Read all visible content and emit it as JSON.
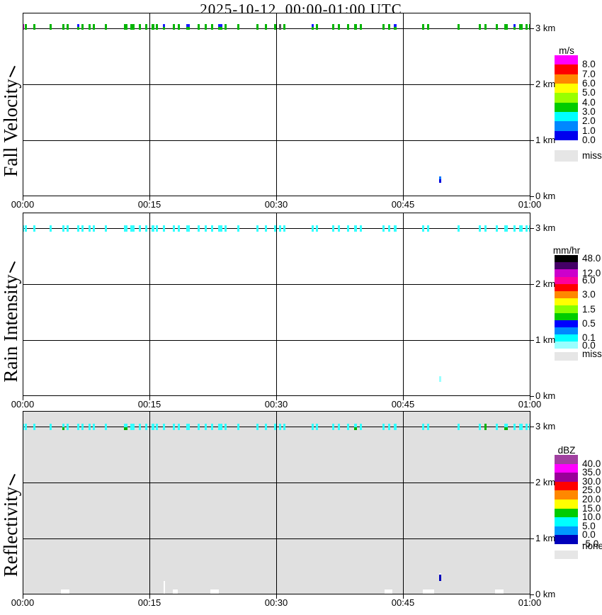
{
  "title": "2025-10-12  00:00-01:00 UTC",
  "panels": [
    {
      "label": "Fall Velocity",
      "unit": "m/s"
    },
    {
      "label": "Rain Intensity",
      "unit": "mm/hr"
    },
    {
      "label": "Reflectivity",
      "unit": "dBZ"
    }
  ],
  "legends": [
    {
      "unit": "m/s",
      "segments": [
        "#ff00ff",
        "#ff0000",
        "#ff8800",
        "#ffff00",
        "#99ff00",
        "#00cc00",
        "#00ffff",
        "#0088ff",
        "#0000ee"
      ],
      "labels": [
        [
          "8.0",
          1
        ],
        [
          "7.0",
          2
        ],
        [
          "6.0",
          3
        ],
        [
          "5.0",
          4
        ],
        [
          "4.0",
          5
        ],
        [
          "3.0",
          6
        ],
        [
          "2.0",
          7
        ],
        [
          "1.0",
          8
        ],
        [
          "0.0",
          9
        ]
      ],
      "miss": "miss"
    },
    {
      "unit": "mm/hr",
      "segments": [
        "#000000",
        "#440066",
        "#cc00cc",
        "#ff0099",
        "#ff0000",
        "#ff8800",
        "#ffff00",
        "#88ff00",
        "#00cc00",
        "#0000ff",
        "#0088ff",
        "#00ffff",
        "#99ffff"
      ],
      "labels": [
        [
          "48.0",
          0.5
        ],
        [
          "12.0",
          2.5
        ],
        [
          "6.0",
          3.5
        ],
        [
          "3.0",
          5.5
        ],
        [
          "1.5",
          7.5
        ],
        [
          "0.5",
          9.5
        ],
        [
          "0.1",
          11.5
        ],
        [
          "0.0",
          12.5
        ]
      ],
      "miss": "miss"
    },
    {
      "unit": "dBZ",
      "segments": [
        "#a040a0",
        "#ff00ff",
        "#990099",
        "#ff0000",
        "#ff8800",
        "#ffff00",
        "#00cc00",
        "#00ffff",
        "#0099ff",
        "#0000bb"
      ],
      "labels": [
        [
          "40.0",
          1
        ],
        [
          "35.0",
          2
        ],
        [
          "30.0",
          3
        ],
        [
          "25.0",
          4
        ],
        [
          "20.0",
          5
        ],
        [
          "15.0",
          6
        ],
        [
          "10.0",
          7
        ],
        [
          "5.0",
          8
        ],
        [
          "0.0",
          9
        ],
        [
          "-5.0",
          10
        ]
      ],
      "miss": "none"
    }
  ],
  "chart_data": {
    "type": "heatmap",
    "title": "2025-10-12  00:00-01:00 UTC",
    "x_ticks": [
      "00:00",
      "00:15",
      "00:30",
      "00:45",
      "01:00"
    ],
    "x_range_minutes": [
      0,
      60
    ],
    "y_ticks": [
      "3 km",
      "2 km",
      "1 km",
      "0 km"
    ],
    "y_range_km": [
      0,
      3.3
    ],
    "panel_titles": [
      "Fall Velocity (m/s)",
      "Rain Intensity (mm/hr)",
      "Reflectivity (dBZ)"
    ],
    "detection_layer_km": 3.05,
    "mark_defaults": {
      "fv": "#00b400",
      "ri": "#33ffff",
      "rf": "#33ffff",
      "w": 3
    },
    "events": [
      {
        "m": 0.0,
        "w": 2,
        "fvc": "#cc00cc"
      },
      {
        "m": 0.3
      },
      {
        "m": 1.3
      },
      {
        "m": 3.2
      },
      {
        "m": 4.7,
        "rf2": "#00b400"
      },
      {
        "m": 5.2
      },
      {
        "m": 6.5,
        "fv2": "#1a1aff"
      },
      {
        "m": 7.0
      },
      {
        "m": 7.8
      },
      {
        "m": 8.3
      },
      {
        "m": 9.8
      },
      {
        "m": 12.1,
        "w": 5,
        "rf2": "#00b400"
      },
      {
        "m": 12.9,
        "w": 6
      },
      {
        "m": 13.8
      },
      {
        "m": 14.5
      },
      {
        "m": 15.3,
        "w": 4
      },
      {
        "m": 15.8
      },
      {
        "m": 16.6,
        "fv2": "#1a1aff"
      },
      {
        "m": 17.8
      },
      {
        "m": 18.4
      },
      {
        "m": 19.5,
        "w": 5,
        "fv2": "#1a1aff"
      },
      {
        "m": 20.7
      },
      {
        "m": 21.6
      },
      {
        "m": 22.3
      },
      {
        "m": 23.3,
        "w": 6,
        "fv2": "#1a1aff"
      },
      {
        "m": 23.9
      },
      {
        "m": 25.4
      },
      {
        "m": 27.7
      },
      {
        "m": 28.7
      },
      {
        "m": 29.8
      },
      {
        "m": 30.4,
        "fvc": "#555555"
      },
      {
        "m": 30.9
      },
      {
        "m": 34.2,
        "fv2": "#1a1aff"
      },
      {
        "m": 34.7
      },
      {
        "m": 36.7
      },
      {
        "m": 37.3
      },
      {
        "m": 38.4
      },
      {
        "m": 39.3,
        "w": 4,
        "rf2": "#00b400"
      },
      {
        "m": 39.9
      },
      {
        "m": 42.6
      },
      {
        "m": 43.3
      },
      {
        "m": 44.0,
        "w": 4,
        "fv2": "#1a1aff"
      },
      {
        "m": 47.3
      },
      {
        "m": 47.9
      },
      {
        "m": 51.5
      },
      {
        "m": 54.0
      },
      {
        "m": 54.7,
        "rfc": "#00b400"
      },
      {
        "m": 56.0
      },
      {
        "m": 57.1,
        "w": 5,
        "rf2": "#00b400"
      },
      {
        "m": 58.1,
        "fv2": "#1a1aff"
      },
      {
        "m": 58.9,
        "w": 5
      },
      {
        "m": 59.5
      },
      {
        "m": 59.9,
        "w": 2
      }
    ],
    "isolated_event": {
      "m": 49.3,
      "alt_km": 0.32,
      "fv_top": "#0077ff",
      "fv_bottom": "#0000dd",
      "ri": "#99ffff",
      "rf": "#0000bb"
    },
    "reflectivity_background": "#e0e0e0",
    "white_gaps_bottom_minutes": [
      [
        4.4,
        5.4
      ],
      [
        17.7,
        18.3
      ],
      [
        22.1,
        23.1
      ],
      [
        42.7,
        43.6
      ],
      [
        47.3,
        48.6
      ],
      [
        55.8,
        56.8
      ]
    ],
    "white_column": {
      "m": 16.7,
      "w": 2,
      "h": 18
    }
  }
}
